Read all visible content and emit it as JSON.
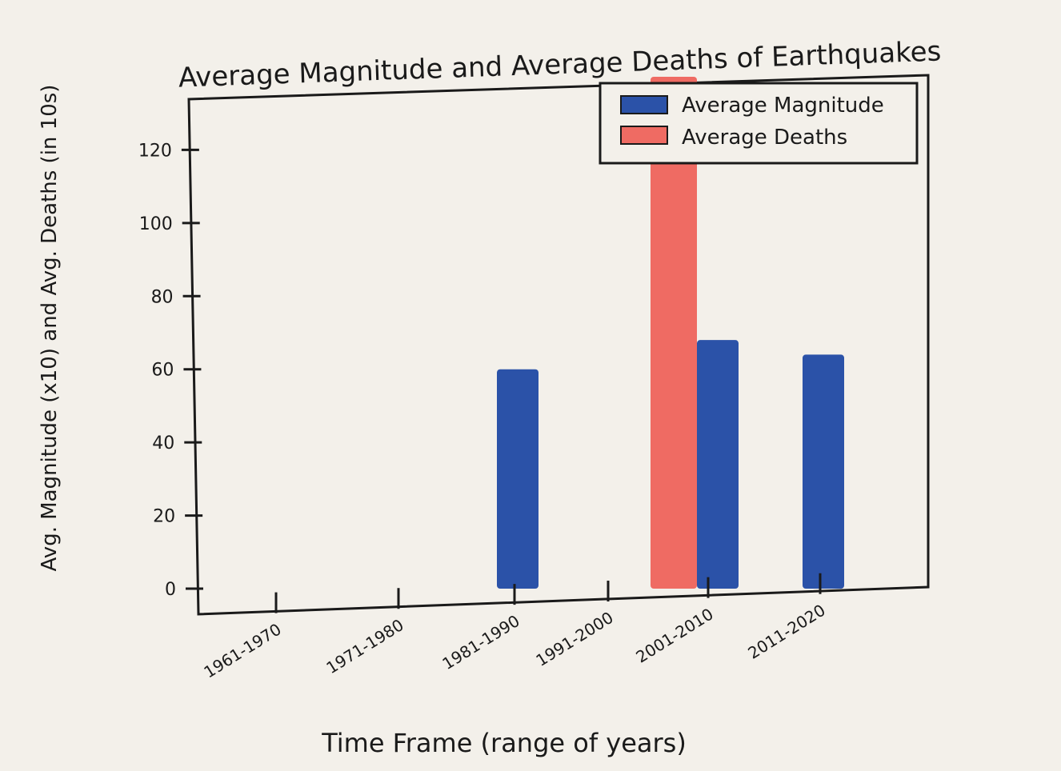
{
  "chart_data": {
    "type": "bar",
    "title": "Average Magnitude and Average Deaths of Earthquakes",
    "xlabel": "Time Frame (range of years)",
    "ylabel": "Avg. Magnitude (x10) and Avg. Deaths (in 10s)",
    "categories": [
      "1961-1970",
      "1971-1980",
      "1981-1990",
      "1991-2000",
      "2001-2010",
      "2011-2020"
    ],
    "series": [
      {
        "name": "Average Magnitude",
        "color": "#2b52a8",
        "values": [
          0,
          0,
          60,
          0,
          68,
          64
        ]
      },
      {
        "name": "Average Deaths",
        "color": "#ef6b63",
        "values": [
          0,
          0,
          0,
          0,
          140,
          0
        ]
      }
    ],
    "yticks": [
      0,
      20,
      40,
      60,
      80,
      100,
      120
    ],
    "ytick_labels": [
      "0",
      "20",
      "40",
      "60",
      "80",
      "100",
      "120"
    ],
    "ylim": [
      0,
      140
    ],
    "legend": "top-right",
    "grid": false
  }
}
